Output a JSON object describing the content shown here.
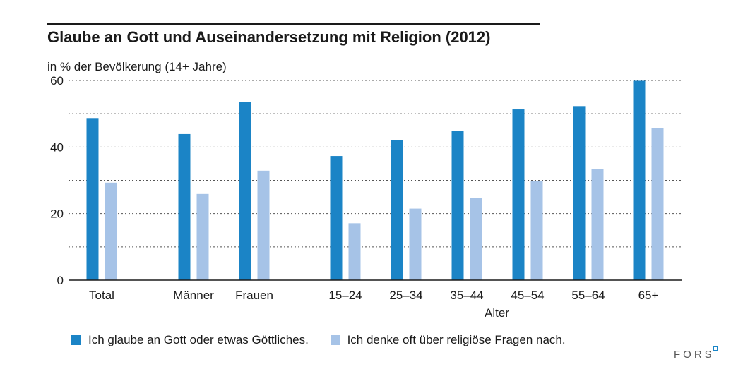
{
  "chart_data": {
    "type": "bar",
    "title": "Glaube an Gott und Auseinandersetzung mit Religion (2012)",
    "subtitle": "in % der Bevölkerung (14+ Jahre)",
    "categories": [
      "Total",
      "Männer",
      "Frauen",
      "15–24",
      "25–34",
      "35–44",
      "45–54",
      "55–64",
      "65+"
    ],
    "xlabel": "Alter",
    "ylabel": "",
    "ylim": [
      0,
      60
    ],
    "yticks": [
      0,
      20,
      40,
      60
    ],
    "grid": true,
    "legend_placement": "bottom",
    "series": [
      {
        "name": "Ich glaube an Gott oder etwas Göttliches.",
        "color": "#1b84c6",
        "values": [
          48.7,
          43.9,
          53.6,
          37.3,
          42.1,
          44.8,
          51.3,
          52.3,
          59.9
        ]
      },
      {
        "name": "Ich denke oft über religiöse Fragen nach.",
        "color": "#a6c3e7",
        "values": [
          29.3,
          25.9,
          32.9,
          17.1,
          21.5,
          24.7,
          29.8,
          33.3,
          45.6
        ]
      }
    ]
  },
  "brand": "FORS"
}
